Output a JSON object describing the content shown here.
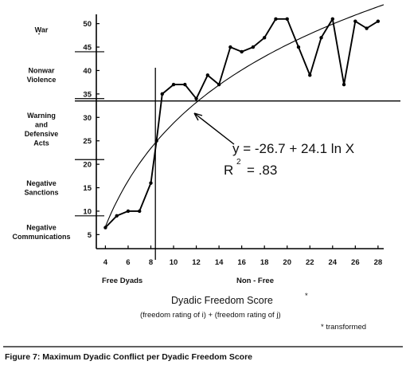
{
  "chart_data": {
    "type": "line",
    "xlabel": "Dyadic Freedom Score",
    "xlabel_star": "*",
    "xlabel_sub": "(freedom rating of i) + (freedom rating of j)",
    "footnote": "* transformed",
    "ylim": [
      2,
      53
    ],
    "y_ticks": [
      "5",
      "10",
      "15",
      "20",
      "25",
      "30",
      "35",
      "40",
      "45",
      "50"
    ],
    "xlim": [
      3.2,
      28.5
    ],
    "x_ticks": [
      "4",
      "6",
      "8",
      "10",
      "12",
      "14",
      "16",
      "18",
      "20",
      "22",
      "24",
      "26",
      "28"
    ],
    "x_groups": [
      "Free Dyads",
      "Non - Free"
    ],
    "category_bands": [
      {
        "lines": [
          "War"
        ]
      },
      {
        "lines": [
          "Nonwar",
          "Violence"
        ]
      },
      {
        "lines": [
          "Warning",
          "and",
          "Defensive",
          "Acts"
        ]
      },
      {
        "lines": [
          "Negative",
          "Sanctions"
        ]
      },
      {
        "lines": [
          "Negative",
          "Communications"
        ]
      }
    ],
    "band_boundaries": [
      44,
      34,
      21,
      9
    ],
    "reference_lines": {
      "vertical_x": 8.4,
      "horizontal_y": 33.5
    },
    "series": [
      {
        "values": [
          [
            4,
            6.5
          ],
          [
            5,
            9
          ],
          [
            6,
            10
          ],
          [
            7,
            10
          ],
          [
            8,
            16
          ],
          [
            8.5,
            25
          ],
          [
            9,
            35
          ],
          [
            10,
            37
          ],
          [
            11,
            37
          ],
          [
            12,
            34
          ],
          [
            13,
            39
          ],
          [
            14,
            37
          ],
          [
            15,
            45
          ],
          [
            16,
            44
          ],
          [
            17,
            45
          ],
          [
            18,
            47
          ],
          [
            19,
            51
          ],
          [
            20,
            51
          ],
          [
            21,
            45
          ],
          [
            22,
            39
          ],
          [
            23,
            47
          ],
          [
            24,
            51
          ],
          [
            25,
            37
          ],
          [
            26,
            50.5
          ],
          [
            27,
            49
          ],
          [
            28,
            50.5
          ]
        ]
      }
    ],
    "fit": {
      "equation": "y = -26.7 + 24.1 ln X",
      "r2_label": "R",
      "r2_exp": "2",
      "r2_value": "= .83",
      "a": -26.7,
      "b": 24.1
    },
    "caption": "Figure 7:  Maximum Dyadic Conflict per Dyadic Freedom Score"
  }
}
